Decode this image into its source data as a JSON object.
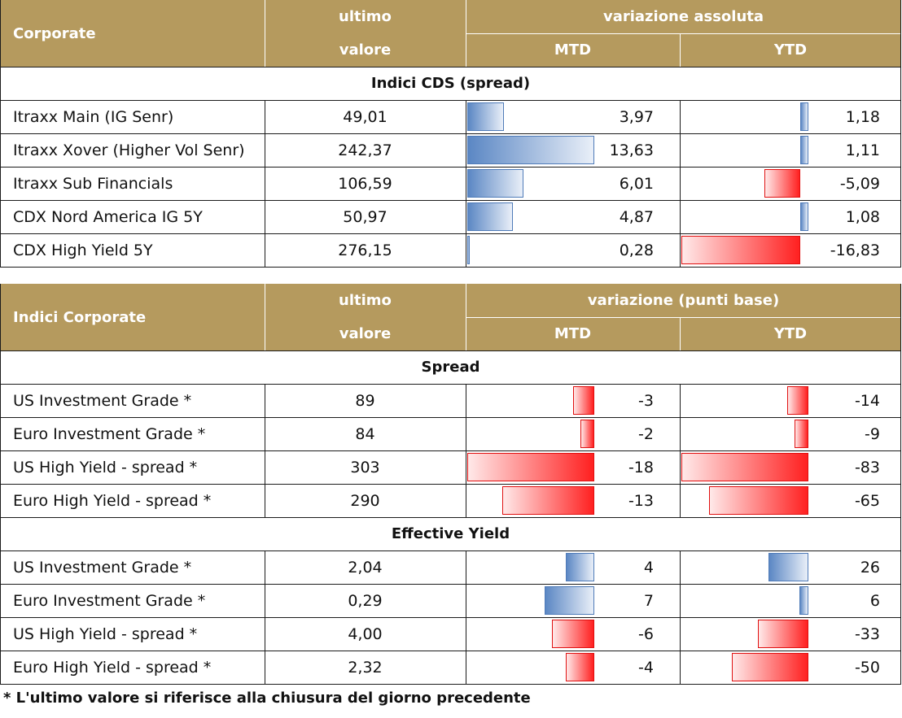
{
  "table1": {
    "header": {
      "corner": "Corporate",
      "ultimo_line1": "ultimo",
      "ultimo_line2": "valore",
      "group": "variazione assoluta",
      "mtd": "MTD",
      "ytd": "YTD"
    },
    "section": "Indici CDS (spread)",
    "rows": [
      {
        "name": "Itraxx Main (IG Senr)",
        "value": "49,01",
        "mtd": "3,97",
        "mtd_num": 3.97,
        "ytd": "1,18",
        "ytd_num": 1.18
      },
      {
        "name": "Itraxx Xover (Higher Vol Senr)",
        "value": "242,37",
        "mtd": "13,63",
        "mtd_num": 13.63,
        "ytd": "1,11",
        "ytd_num": 1.11
      },
      {
        "name": "Itraxx Sub Financials",
        "value": "106,59",
        "mtd": "6,01",
        "mtd_num": 6.01,
        "ytd": "-5,09",
        "ytd_num": -5.09
      },
      {
        "name": "CDX Nord America IG 5Y",
        "value": "50,97",
        "mtd": "4,87",
        "mtd_num": 4.87,
        "ytd": "1,08",
        "ytd_num": 1.08
      },
      {
        "name": "CDX High Yield 5Y",
        "value": "276,15",
        "mtd": "0,28",
        "mtd_num": 0.28,
        "ytd": "-16,83",
        "ytd_num": -16.83
      }
    ]
  },
  "table2": {
    "header": {
      "corner": "Indici Corporate",
      "ultimo_line1": "ultimo",
      "ultimo_line2": "valore",
      "group": "variazione (punti base)",
      "mtd": "MTD",
      "ytd": "YTD"
    },
    "sections": [
      {
        "title": "Spread",
        "rows": [
          {
            "name": "US Investment Grade *",
            "value": "89",
            "mtd": "-3",
            "mtd_num": -3,
            "ytd": "-14",
            "ytd_num": -14
          },
          {
            "name": "Euro Investment Grade *",
            "value": "84",
            "mtd": "-2",
            "mtd_num": -2,
            "ytd": "-9",
            "ytd_num": -9
          },
          {
            "name": "US High Yield  - spread *",
            "value": "303",
            "mtd": "-18",
            "mtd_num": -18,
            "ytd": "-83",
            "ytd_num": -83
          },
          {
            "name": "Euro High Yield  - spread *",
            "value": "290",
            "mtd": "-13",
            "mtd_num": -13,
            "ytd": "-65",
            "ytd_num": -65
          }
        ]
      },
      {
        "title": "Effective Yield",
        "rows": [
          {
            "name": "US Investment Grade *",
            "value": "2,04",
            "mtd": "4",
            "mtd_num": 4,
            "ytd": "26",
            "ytd_num": 26
          },
          {
            "name": "Euro Investment Grade *",
            "value": "0,29",
            "mtd": "7",
            "mtd_num": 7,
            "ytd": "6",
            "ytd_num": 6
          },
          {
            "name": "US High Yield  - spread *",
            "value": "4,00",
            "mtd": "-6",
            "mtd_num": -6,
            "ytd": "-33",
            "ytd_num": -33
          },
          {
            "name": "Euro High Yield  - spread *",
            "value": "2,32",
            "mtd": "-4",
            "mtd_num": -4,
            "ytd": "-50",
            "ytd_num": -50
          }
        ]
      }
    ]
  },
  "footnote": "* L'ultimo valore si riferisce alla chiusura del giorno precedente",
  "colors": {
    "header_bg": "#b59a5e",
    "positive_bar": "#5b87c4",
    "negative_bar": "#ff2020"
  }
}
